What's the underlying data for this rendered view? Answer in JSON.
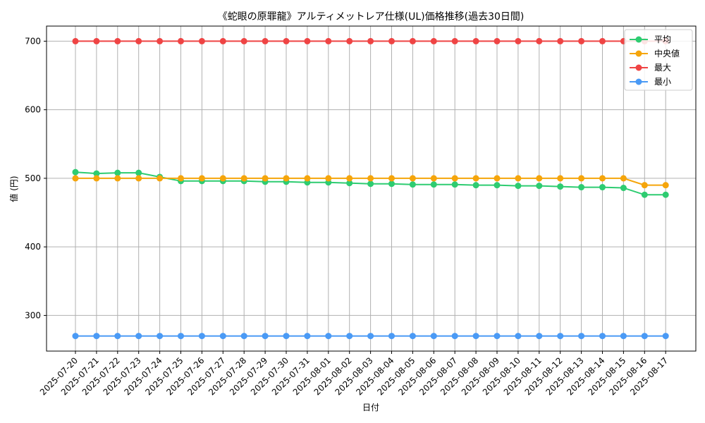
{
  "chart_data": {
    "type": "line",
    "title": "《蛇眼の原罪龍》アルティメットレア仕様(UL)価格推移(過去30日間)",
    "xlabel": "日付",
    "ylabel": "値 (円)",
    "categories": [
      "2025-07-20",
      "2025-07-21",
      "2025-07-22",
      "2025-07-23",
      "2025-07-24",
      "2025-07-25",
      "2025-07-26",
      "2025-07-27",
      "2025-07-28",
      "2025-07-29",
      "2025-07-30",
      "2025-07-31",
      "2025-08-01",
      "2025-08-02",
      "2025-08-03",
      "2025-08-04",
      "2025-08-05",
      "2025-08-06",
      "2025-08-07",
      "2025-08-08",
      "2025-08-09",
      "2025-08-10",
      "2025-08-11",
      "2025-08-12",
      "2025-08-13",
      "2025-08-14",
      "2025-08-15",
      "2025-08-16",
      "2025-08-17"
    ],
    "yticks": [
      300,
      400,
      500,
      600,
      700
    ],
    "ylim": [
      248,
      722
    ],
    "grid": true,
    "legend_position": "top-right",
    "series": [
      {
        "name": "平均",
        "color": "#2ecc71",
        "values": [
          509,
          507,
          508,
          508,
          502,
          496,
          496,
          496,
          496,
          495,
          495,
          494,
          494,
          493,
          492,
          492,
          491,
          491,
          491,
          490,
          490,
          489,
          489,
          488,
          487,
          487,
          486,
          476,
          476
        ]
      },
      {
        "name": "中央値",
        "color": "#f5a50b",
        "values": [
          500,
          500,
          500,
          500,
          500,
          500,
          500,
          500,
          500,
          500,
          500,
          500,
          500,
          500,
          500,
          500,
          500,
          500,
          500,
          500,
          500,
          500,
          500,
          500,
          500,
          500,
          500,
          490,
          490
        ]
      },
      {
        "name": "最大",
        "color": "#ef4444",
        "values": [
          700,
          700,
          700,
          700,
          700,
          700,
          700,
          700,
          700,
          700,
          700,
          700,
          700,
          700,
          700,
          700,
          700,
          700,
          700,
          700,
          700,
          700,
          700,
          700,
          700,
          700,
          700,
          700,
          700
        ]
      },
      {
        "name": "最小",
        "color": "#4a9af5",
        "values": [
          270,
          270,
          270,
          270,
          270,
          270,
          270,
          270,
          270,
          270,
          270,
          270,
          270,
          270,
          270,
          270,
          270,
          270,
          270,
          270,
          270,
          270,
          270,
          270,
          270,
          270,
          270,
          270,
          270
        ]
      }
    ]
  }
}
